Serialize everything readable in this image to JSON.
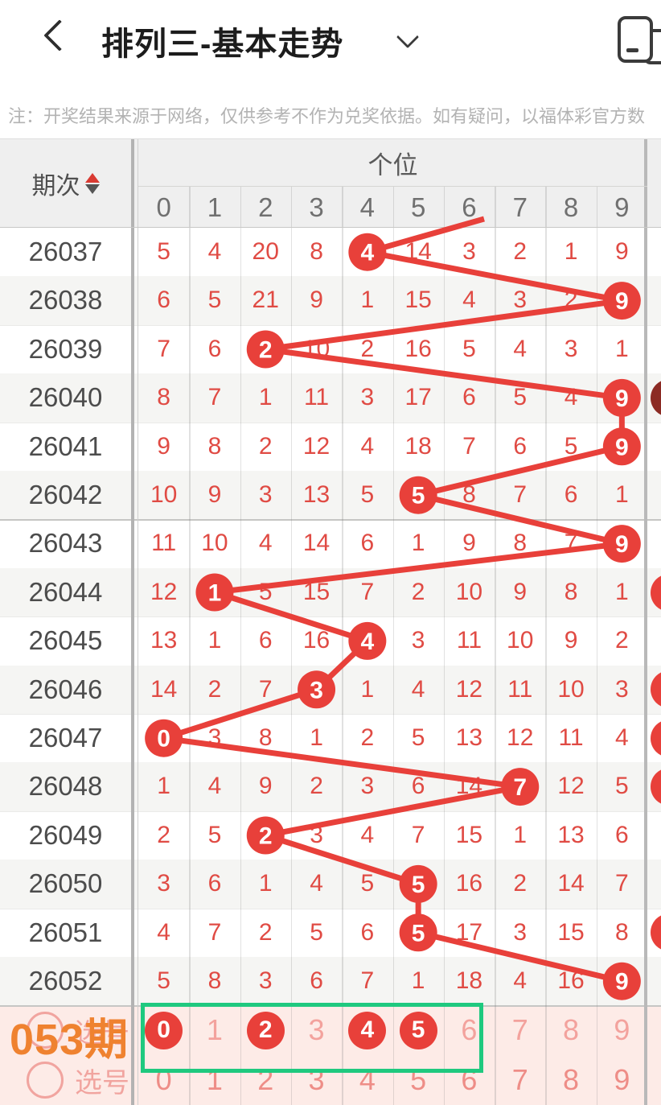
{
  "header": {
    "title": "排列三-基本走势",
    "back_icon": "chevron-left",
    "dropdown_icon": "chevron-down",
    "screen_cast_icon": "device-switch"
  },
  "notice": "注：开奖结果来源于网络，仅供参考不作为兑奖依据。如有疑问，以福体彩官方数",
  "table": {
    "period_header": "期次",
    "sort_icon": "sort-arrows",
    "group_header": "个位",
    "digit_headers": [
      "0",
      "1",
      "2",
      "3",
      "4",
      "5",
      "6",
      "7",
      "8",
      "9"
    ],
    "rows": [
      {
        "period": "26037",
        "values": [
          "5",
          "4",
          "20",
          "8",
          "4",
          "14",
          "3",
          "2",
          "1",
          "9"
        ],
        "drawn_digit": 4
      },
      {
        "period": "26038",
        "values": [
          "6",
          "5",
          "21",
          "9",
          "1",
          "15",
          "4",
          "3",
          "2",
          "9"
        ],
        "drawn_digit": 9
      },
      {
        "period": "26039",
        "values": [
          "7",
          "6",
          "2",
          "10",
          "2",
          "16",
          "5",
          "4",
          "3",
          "1"
        ],
        "drawn_digit": 2
      },
      {
        "period": "26040",
        "values": [
          "8",
          "7",
          "1",
          "11",
          "3",
          "17",
          "6",
          "5",
          "4",
          "9"
        ],
        "drawn_digit": 9,
        "right_marker": "dark"
      },
      {
        "period": "26041",
        "values": [
          "9",
          "8",
          "2",
          "12",
          "4",
          "18",
          "7",
          "6",
          "5",
          "9"
        ],
        "drawn_digit": 9
      },
      {
        "period": "26042",
        "values": [
          "10",
          "9",
          "3",
          "13",
          "5",
          "5",
          "8",
          "7",
          "6",
          "1"
        ],
        "drawn_digit": 5
      },
      {
        "period": "26043",
        "values": [
          "11",
          "10",
          "4",
          "14",
          "6",
          "1",
          "9",
          "8",
          "7",
          "9"
        ],
        "drawn_digit": 9
      },
      {
        "period": "26044",
        "values": [
          "12",
          "1",
          "5",
          "15",
          "7",
          "2",
          "10",
          "9",
          "8",
          "1"
        ],
        "drawn_digit": 1,
        "right_marker": "red"
      },
      {
        "period": "26045",
        "values": [
          "13",
          "1",
          "6",
          "16",
          "4",
          "3",
          "11",
          "10",
          "9",
          "2"
        ],
        "drawn_digit": 4
      },
      {
        "period": "26046",
        "values": [
          "14",
          "2",
          "7",
          "3",
          "1",
          "4",
          "12",
          "11",
          "10",
          "3"
        ],
        "drawn_digit": 3,
        "right_marker": "red"
      },
      {
        "period": "26047",
        "values": [
          "0",
          "3",
          "8",
          "1",
          "2",
          "5",
          "13",
          "12",
          "11",
          "4"
        ],
        "drawn_digit": 0,
        "right_marker": "red"
      },
      {
        "period": "26048",
        "values": [
          "1",
          "4",
          "9",
          "2",
          "3",
          "6",
          "14",
          "7",
          "12",
          "5"
        ],
        "drawn_digit": 7,
        "right_marker": "red"
      },
      {
        "period": "26049",
        "values": [
          "2",
          "5",
          "2",
          "3",
          "4",
          "7",
          "15",
          "1",
          "13",
          "6"
        ],
        "drawn_digit": 2
      },
      {
        "period": "26050",
        "values": [
          "3",
          "6",
          "1",
          "4",
          "5",
          "5",
          "16",
          "2",
          "14",
          "7"
        ],
        "drawn_digit": 5
      },
      {
        "period": "26051",
        "values": [
          "4",
          "7",
          "2",
          "5",
          "6",
          "5",
          "17",
          "3",
          "15",
          "8"
        ],
        "drawn_digit": 5,
        "right_marker": "red"
      },
      {
        "period": "26052",
        "values": [
          "5",
          "8",
          "3",
          "6",
          "7",
          "1",
          "18",
          "4",
          "16",
          "9"
        ],
        "drawn_digit": 9
      }
    ]
  },
  "selection_area": {
    "next_period_label": "053期",
    "pick_label": "选号",
    "rows": [
      {
        "digits": [
          "0",
          "1",
          "2",
          "3",
          "4",
          "5",
          "6",
          "7",
          "8",
          "9"
        ],
        "selected": [
          0,
          2,
          4,
          5
        ]
      },
      {
        "digits": [
          "0",
          "1",
          "2",
          "3",
          "4",
          "5",
          "6",
          "7",
          "8",
          "9"
        ],
        "selected": []
      }
    ]
  },
  "colors": {
    "number_red": "#e04b44",
    "marker_red": "#e8403a",
    "marker_dark": "#8c2b24",
    "line_red": "#e8403a",
    "stripe_gray": "#f5f5f3",
    "header_gray": "#efefef",
    "selection_pink_bg": "#fdebe7",
    "pick_pink": "#f3a29d",
    "green_box": "#1fc97f",
    "orange_label": "#ef8230"
  }
}
